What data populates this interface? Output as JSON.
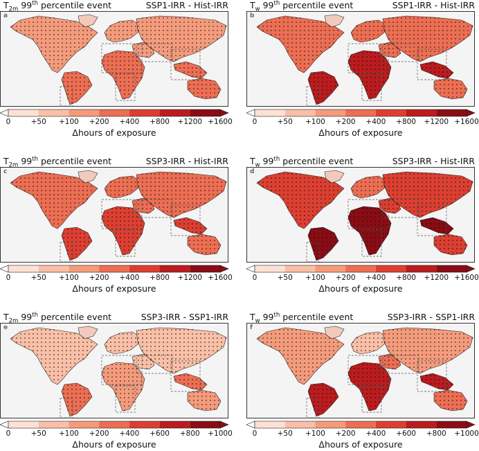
{
  "chart_data": [
    {
      "type": "heatmap",
      "panel": "a",
      "title_left": {
        "var": "T",
        "sub": "2m",
        "num": " 99",
        "sup": "th",
        "rest": " percentile event"
      },
      "title_right": "SSP1-IRR - Hist-IRR",
      "colorbar": {
        "ticks": [
          "0",
          "+50",
          "+100",
          "+200",
          "+400",
          "+800",
          "+1200",
          "+1600"
        ],
        "label": "Δhours of exposure",
        "colors": [
          "#fde1d4",
          "#f9bfa7",
          "#f49b7c",
          "#ec6e53",
          "#dc3f31",
          "#bb1c1e",
          "#8a0c14"
        ]
      },
      "region_levels": {
        "na": 2,
        "sa": 3,
        "eu": 2,
        "af": 3,
        "me": 2,
        "as": 2,
        "sea": 3,
        "au": 3,
        "gr": 0
      }
    },
    {
      "type": "heatmap",
      "panel": "b",
      "title_left": {
        "var": "T",
        "sub": "w",
        "num": " 99",
        "sup": "th",
        "rest": " percentile event"
      },
      "title_right": "SSP1-IRR - Hist-IRR",
      "colorbar": {
        "ticks": [
          "0",
          "+50",
          "+100",
          "+200",
          "+400",
          "+800",
          "+1200",
          "+1600"
        ],
        "label": "Δhours of exposure",
        "colors": [
          "#fde1d4",
          "#f9bfa7",
          "#f49b7c",
          "#ec6e53",
          "#dc3f31",
          "#bb1c1e",
          "#8a0c14"
        ]
      },
      "region_levels": {
        "na": 3,
        "sa": 5,
        "eu": 3,
        "af": 5,
        "me": 3,
        "as": 3,
        "sea": 5,
        "au": 3,
        "gr": 0
      }
    },
    {
      "type": "heatmap",
      "panel": "c",
      "title_left": {
        "var": "T",
        "sub": "2m",
        "num": " 99",
        "sup": "th",
        "rest": " percentile event"
      },
      "title_right": "SSP3-IRR - Hist-IRR",
      "colorbar": {
        "ticks": [
          "0",
          "+50",
          "+100",
          "+200",
          "+400",
          "+800",
          "+1200",
          "+1600"
        ],
        "label": "Δhours of exposure",
        "colors": [
          "#fde1d4",
          "#f9bfa7",
          "#f49b7c",
          "#ec6e53",
          "#dc3f31",
          "#bb1c1e",
          "#8a0c14"
        ]
      },
      "region_levels": {
        "na": 3,
        "sa": 4,
        "eu": 3,
        "af": 4,
        "me": 3,
        "as": 3,
        "sea": 4,
        "au": 3,
        "gr": 0
      }
    },
    {
      "type": "heatmap",
      "panel": "d",
      "title_left": {
        "var": "T",
        "sub": "w",
        "num": " 99",
        "sup": "th",
        "rest": " percentile event"
      },
      "title_right": "SSP3-IRR - Hist-IRR",
      "colorbar": {
        "ticks": [
          "0",
          "+50",
          "+100",
          "+200",
          "+400",
          "+800",
          "+1200",
          "+1600"
        ],
        "label": "Δhours of exposure",
        "colors": [
          "#fde1d4",
          "#f9bfa7",
          "#f49b7c",
          "#ec6e53",
          "#dc3f31",
          "#bb1c1e",
          "#8a0c14"
        ]
      },
      "region_levels": {
        "na": 4,
        "sa": 6,
        "eu": 3,
        "af": 6,
        "me": 4,
        "as": 4,
        "sea": 6,
        "au": 4,
        "gr": 0
      }
    },
    {
      "type": "heatmap",
      "panel": "e",
      "title_left": {
        "var": "T",
        "sub": "2m",
        "num": " 99",
        "sup": "th",
        "rest": " percentile event"
      },
      "title_right": "SSP3-IRR - SSP1-IRR",
      "colorbar": {
        "ticks": [
          "0",
          "+50",
          "+100",
          "+200",
          "+400",
          "+600",
          "+800",
          "+1000"
        ],
        "label": "Δhours of exposure",
        "colors": [
          "#fde1d4",
          "#f9bfa7",
          "#f49b7c",
          "#ec6e53",
          "#dc3f31",
          "#bb1c1e",
          "#8a0c14"
        ]
      },
      "region_levels": {
        "na": 1,
        "sa": 3,
        "eu": 1,
        "af": 2,
        "me": 1,
        "as": 1,
        "sea": 3,
        "au": 2,
        "gr": 0
      }
    },
    {
      "type": "heatmap",
      "panel": "f",
      "title_left": {
        "var": "T",
        "sub": "w",
        "num": " 99",
        "sup": "th",
        "rest": " percentile event"
      },
      "title_right": "SSP3-IRR - SSP1-IRR",
      "colorbar": {
        "ticks": [
          "0",
          "+50",
          "+100",
          "+200",
          "+400",
          "+600",
          "+800",
          "+1000"
        ],
        "label": "Δhours of exposure",
        "colors": [
          "#fde1d4",
          "#f9bfa7",
          "#f49b7c",
          "#ec6e53",
          "#dc3f31",
          "#bb1c1e",
          "#8a0c14"
        ]
      },
      "region_levels": {
        "na": 2,
        "sa": 5,
        "eu": 1,
        "af": 5,
        "me": 3,
        "as": 2,
        "sea": 5,
        "au": 3,
        "gr": 0
      }
    }
  ]
}
